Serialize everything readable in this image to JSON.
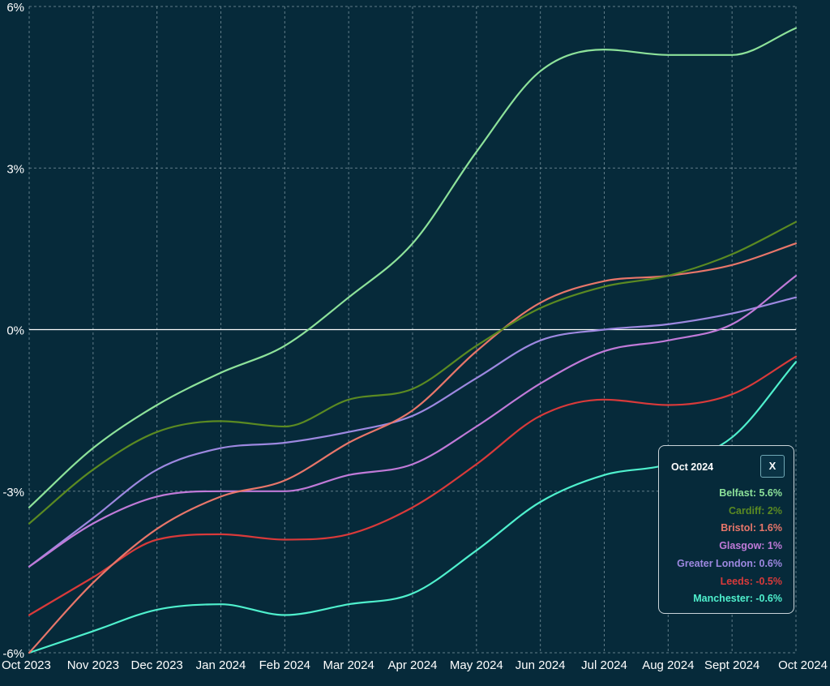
{
  "chart_data": {
    "type": "line",
    "title": "",
    "xlabel": "",
    "ylabel": "",
    "x": [
      "Oct 2023",
      "Nov 2023",
      "Dec 2023",
      "Jan 2024",
      "Feb 2024",
      "Mar 2024",
      "Apr 2024",
      "May 2024",
      "Jun 2024",
      "Jul 2024",
      "Aug 2024",
      "Sept 2024",
      "Oct 2024"
    ],
    "ylim": [
      -6,
      6
    ],
    "yticks": [
      6,
      3,
      0,
      -3,
      -6
    ],
    "ytick_labels": [
      "6%",
      "3%",
      "0%",
      "-3%",
      "-6%"
    ],
    "grid": true,
    "series": [
      {
        "name": "Belfast",
        "color": "#8de29a",
        "values": [
          -3.3,
          -2.2,
          -1.4,
          -0.8,
          -0.3,
          0.6,
          1.6,
          3.3,
          4.8,
          5.2,
          5.1,
          5.1,
          5.6
        ]
      },
      {
        "name": "Cardiff",
        "color": "#5b8a22",
        "values": [
          -3.6,
          -2.6,
          -1.9,
          -1.7,
          -1.8,
          -1.3,
          -1.1,
          -0.3,
          0.4,
          0.8,
          1.0,
          1.4,
          2.0
        ]
      },
      {
        "name": "Bristol",
        "color": "#e8766a",
        "values": [
          -6.0,
          -4.7,
          -3.7,
          -3.1,
          -2.8,
          -2.1,
          -1.5,
          -0.4,
          0.5,
          0.9,
          1.0,
          1.2,
          1.6
        ]
      },
      {
        "name": "Glasgow",
        "color": "#c07ad8",
        "values": [
          -4.4,
          -3.6,
          -3.1,
          -3.0,
          -3.0,
          -2.7,
          -2.5,
          -1.8,
          -1.0,
          -0.4,
          -0.2,
          0.1,
          1.0
        ]
      },
      {
        "name": "Greater London",
        "color": "#9d88e0",
        "values": [
          -4.4,
          -3.5,
          -2.6,
          -2.2,
          -2.1,
          -1.9,
          -1.6,
          -0.9,
          -0.2,
          0.0,
          0.1,
          0.3,
          0.6
        ]
      },
      {
        "name": "Leeds",
        "color": "#d93a3a",
        "values": [
          -5.3,
          -4.6,
          -3.9,
          -3.8,
          -3.9,
          -3.8,
          -3.3,
          -2.5,
          -1.6,
          -1.3,
          -1.4,
          -1.2,
          -0.5
        ]
      },
      {
        "name": "Manchester",
        "color": "#4ff0cd",
        "values": [
          -6.0,
          -5.6,
          -5.2,
          -5.1,
          -5.3,
          -5.1,
          -4.9,
          -4.1,
          -3.2,
          -2.7,
          -2.5,
          -2.0,
          -0.6
        ]
      }
    ]
  },
  "tooltip": {
    "title": "Oct 2024",
    "close_label": "X",
    "rows": [
      {
        "text": "Belfast: 5.6%",
        "color": "#8de29a"
      },
      {
        "text": "Cardiff: 2%",
        "color": "#5b8a22"
      },
      {
        "text": "Bristol: 1.6%",
        "color": "#e8766a"
      },
      {
        "text": "Glasgow: 1%",
        "color": "#c07ad8"
      },
      {
        "text": "Greater London: 0.6%",
        "color": "#9d88e0"
      },
      {
        "text": "Leeds: -0.5%",
        "color": "#d93a3a"
      },
      {
        "text": "Manchester: -0.6%",
        "color": "#4ff0cd"
      }
    ]
  }
}
